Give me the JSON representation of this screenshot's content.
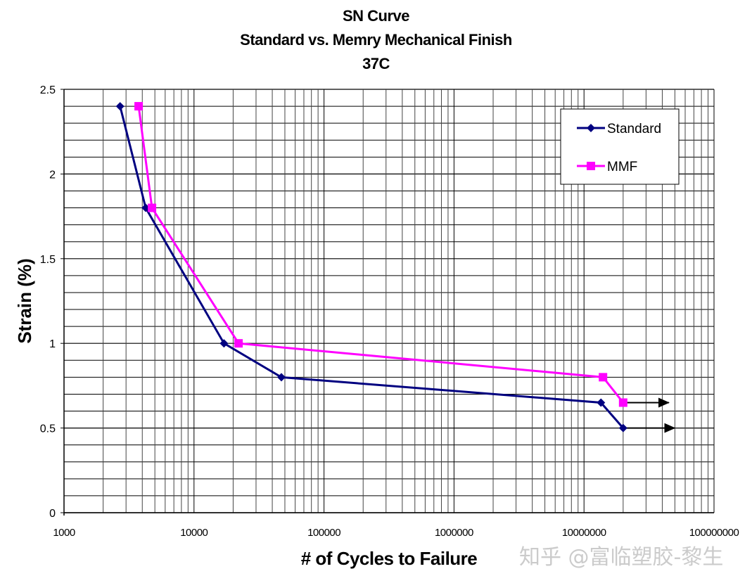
{
  "chart_data": {
    "type": "line",
    "title": [
      "SN Curve",
      "Standard vs. Memry Mechanical Finish",
      "37C"
    ],
    "xlabel": "# of Cycles to Failure",
    "ylabel": "Strain (%)",
    "xscale": "log",
    "xlim": [
      1000,
      100000000
    ],
    "ylim": [
      0,
      2.5
    ],
    "xticks": [
      "1000",
      "10000",
      "100000",
      "1000000",
      "10000000",
      "100000000"
    ],
    "yticks": [
      "0",
      "0.5",
      "1",
      "1.5",
      "2",
      "2.5"
    ],
    "grid": true,
    "legend_position": "top-right",
    "series": [
      {
        "name": "Standard",
        "color": "#000080",
        "marker": "diamond",
        "x": [
          2700,
          4250,
          17000,
          47000,
          13500000,
          20000000
        ],
        "y": [
          2.4,
          1.8,
          1.0,
          0.8,
          0.65,
          0.5
        ]
      },
      {
        "name": "MMF",
        "color": "#FF00FF",
        "marker": "square",
        "x": [
          3750,
          4750,
          22000,
          14000000,
          20000000
        ],
        "y": [
          2.4,
          1.8,
          1.0,
          0.8,
          0.65
        ]
      }
    ],
    "annotations": [
      {
        "type": "arrow",
        "color": "#000000",
        "from": [
          20000000,
          0.65
        ],
        "to": [
          45000000,
          0.65
        ]
      },
      {
        "type": "arrow",
        "color": "#000000",
        "from": [
          20000000,
          0.5
        ],
        "to": [
          50000000,
          0.5
        ]
      }
    ]
  },
  "watermark": "知乎 @富临塑胶-黎生"
}
